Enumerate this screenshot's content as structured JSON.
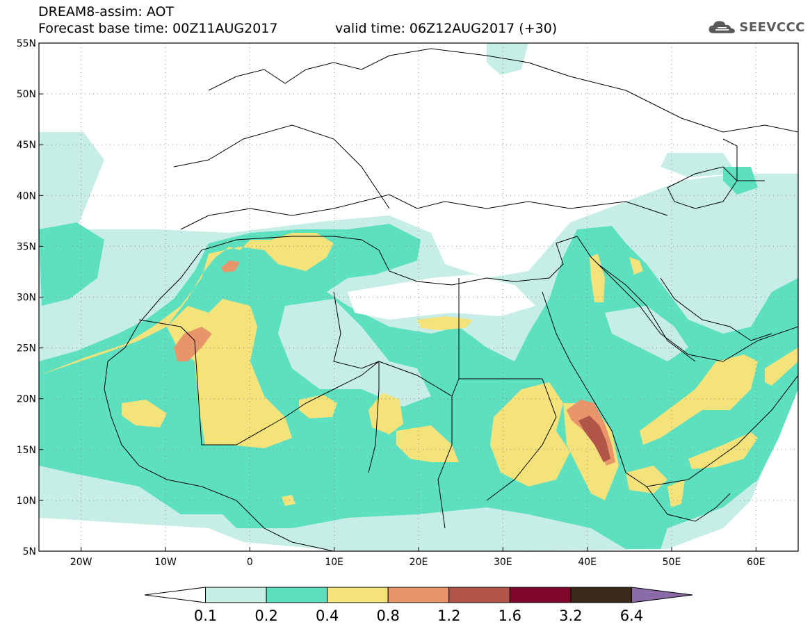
{
  "header": {
    "model_line": "DREAM8-assim: AOT",
    "base_time_line": "Forecast base time: 00Z11AUG2017",
    "valid_time_line": "valid time: 06Z12AUG2017 (+30)"
  },
  "logo": {
    "text": "SEEVCCC",
    "icon": "cloud-icon"
  },
  "map": {
    "lon_range": [
      -25,
      65
    ],
    "lat_range": [
      5,
      55
    ],
    "lat_ticks": [
      {
        "value": 55,
        "label": "55N"
      },
      {
        "value": 50,
        "label": "50N"
      },
      {
        "value": 45,
        "label": "45N"
      },
      {
        "value": 40,
        "label": "40N"
      },
      {
        "value": 35,
        "label": "35N"
      },
      {
        "value": 30,
        "label": "30N"
      },
      {
        "value": 25,
        "label": "25N"
      },
      {
        "value": 20,
        "label": "20N"
      },
      {
        "value": 15,
        "label": "15N"
      },
      {
        "value": 10,
        "label": "10N"
      },
      {
        "value": 5,
        "label": "5N"
      }
    ],
    "lon_ticks": [
      {
        "value": -20,
        "label": "20W"
      },
      {
        "value": -10,
        "label": "10W"
      },
      {
        "value": 0,
        "label": "0"
      },
      {
        "value": 10,
        "label": "10E"
      },
      {
        "value": 20,
        "label": "20E"
      },
      {
        "value": 30,
        "label": "30E"
      },
      {
        "value": 40,
        "label": "40E"
      },
      {
        "value": 50,
        "label": "50E"
      },
      {
        "value": 60,
        "label": "60E"
      }
    ],
    "grid": "dotted"
  },
  "colorbar": {
    "labels": [
      "0.1",
      "0.2",
      "0.4",
      "0.8",
      "1.2",
      "1.6",
      "3.2",
      "6.4"
    ],
    "colors": [
      "#ffffff",
      "#c7eee6",
      "#5ce0c0",
      "#f4e27a",
      "#e8956a",
      "#b05548",
      "#80072c",
      "#3a2818",
      "#8a6aa8"
    ]
  }
}
